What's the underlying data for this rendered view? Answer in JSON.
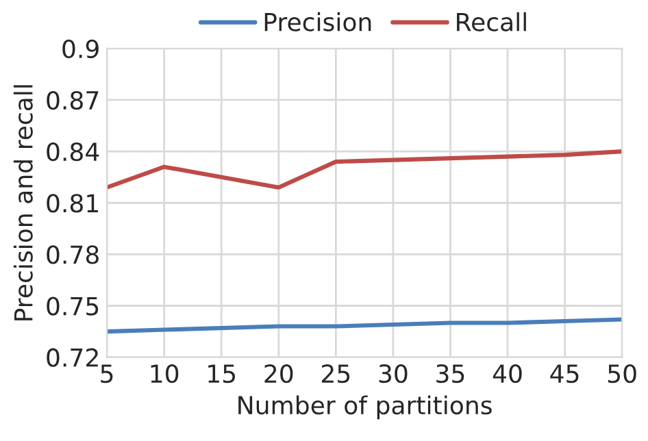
{
  "chart_data": {
    "type": "line",
    "xlabel": "Number of partitions",
    "ylabel": "Precision and recall",
    "x": [
      5,
      10,
      20,
      25,
      30,
      35,
      40,
      45,
      50
    ],
    "series": [
      {
        "name": "Precision",
        "color": "#4a7ebb",
        "values": [
          0.735,
          0.736,
          0.738,
          0.738,
          0.739,
          0.74,
          0.74,
          0.741,
          0.742
        ]
      },
      {
        "name": "Recall",
        "color": "#be4b48",
        "values": [
          0.819,
          0.831,
          0.819,
          0.834,
          0.835,
          0.836,
          0.837,
          0.838,
          0.84
        ]
      }
    ],
    "xlim": [
      5,
      50
    ],
    "xticks": [
      5,
      10,
      15,
      20,
      25,
      30,
      35,
      40,
      45,
      50
    ],
    "ylim": [
      0.72,
      0.9
    ],
    "yticks": [
      0.72,
      0.75,
      0.78,
      0.81,
      0.84,
      0.87,
      0.9
    ],
    "grid": true,
    "legend": "top",
    "line_style": "solid",
    "marker": "none"
  }
}
